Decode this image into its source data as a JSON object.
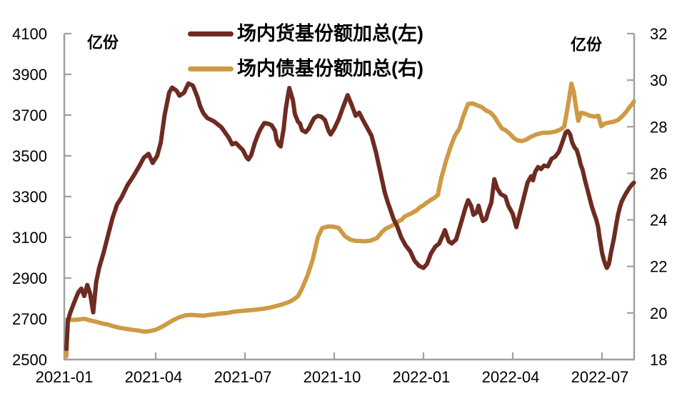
{
  "chart_data": {
    "type": "line",
    "legend_position": "top-center",
    "grid": false,
    "axis_color": "#a0a0a0",
    "text_color": "#000000",
    "left_axis": {
      "unit": "亿份",
      "min": 2500,
      "max": 4100,
      "step": 200,
      "ticks": [
        4100,
        3900,
        3700,
        3500,
        3300,
        3100,
        2900,
        2700,
        2500
      ]
    },
    "right_axis": {
      "unit": "亿份",
      "min": 18,
      "max": 32,
      "step": 2,
      "ticks": [
        32,
        30,
        28,
        26,
        24,
        22,
        20,
        18
      ]
    },
    "x_axis": {
      "tick_labels": [
        "2021-01",
        "2021-04",
        "2021-07",
        "2021-10",
        "2022-01",
        "2022-04",
        "2022-07"
      ],
      "tick_month_offsets": [
        0,
        3,
        6,
        9,
        12,
        15,
        18
      ],
      "months_span": 19.1
    },
    "series": [
      {
        "name": "场内货基份额加总(左)",
        "axis": "left",
        "color": "#6e2b21",
        "points": [
          [
            0.0,
            2552
          ],
          [
            0.05,
            2690
          ],
          [
            0.12,
            2726
          ],
          [
            0.25,
            2776
          ],
          [
            0.4,
            2830
          ],
          [
            0.5,
            2848
          ],
          [
            0.6,
            2812
          ],
          [
            0.7,
            2866
          ],
          [
            0.8,
            2822
          ],
          [
            0.9,
            2732
          ],
          [
            1.0,
            2880
          ],
          [
            1.1,
            2950
          ],
          [
            1.25,
            3025
          ],
          [
            1.4,
            3110
          ],
          [
            1.55,
            3195
          ],
          [
            1.7,
            3260
          ],
          [
            1.85,
            3295
          ],
          [
            2.05,
            3355
          ],
          [
            2.25,
            3400
          ],
          [
            2.45,
            3450
          ],
          [
            2.6,
            3490
          ],
          [
            2.76,
            3510
          ],
          [
            2.9,
            3465
          ],
          [
            3.05,
            3500
          ],
          [
            3.17,
            3565
          ],
          [
            3.3,
            3700
          ],
          [
            3.45,
            3810
          ],
          [
            3.55,
            3835
          ],
          [
            3.7,
            3820
          ],
          [
            3.8,
            3795
          ],
          [
            3.95,
            3810
          ],
          [
            4.1,
            3855
          ],
          [
            4.25,
            3845
          ],
          [
            4.4,
            3790
          ],
          [
            4.49,
            3745
          ],
          [
            4.6,
            3710
          ],
          [
            4.73,
            3686
          ],
          [
            4.97,
            3668
          ],
          [
            5.21,
            3640
          ],
          [
            5.45,
            3590
          ],
          [
            5.57,
            3556
          ],
          [
            5.69,
            3563
          ],
          [
            5.81,
            3546
          ],
          [
            5.93,
            3528
          ],
          [
            6.05,
            3493
          ],
          [
            6.12,
            3482
          ],
          [
            6.21,
            3504
          ],
          [
            6.33,
            3563
          ],
          [
            6.45,
            3609
          ],
          [
            6.53,
            3633
          ],
          [
            6.65,
            3661
          ],
          [
            6.77,
            3658
          ],
          [
            6.89,
            3651
          ],
          [
            7.01,
            3623
          ],
          [
            7.06,
            3581
          ],
          [
            7.13,
            3556
          ],
          [
            7.2,
            3546
          ],
          [
            7.3,
            3633
          ],
          [
            7.37,
            3728
          ],
          [
            7.42,
            3774
          ],
          [
            7.49,
            3833
          ],
          [
            7.61,
            3774
          ],
          [
            7.68,
            3704
          ],
          [
            7.78,
            3668
          ],
          [
            7.85,
            3658
          ],
          [
            7.92,
            3626
          ],
          [
            8.04,
            3616
          ],
          [
            8.14,
            3633
          ],
          [
            8.26,
            3668
          ],
          [
            8.33,
            3686
          ],
          [
            8.45,
            3696
          ],
          [
            8.57,
            3692
          ],
          [
            8.69,
            3675
          ],
          [
            8.81,
            3623
          ],
          [
            8.88,
            3605
          ],
          [
            9.0,
            3633
          ],
          [
            9.15,
            3680
          ],
          [
            9.3,
            3740
          ],
          [
            9.45,
            3798
          ],
          [
            9.6,
            3745
          ],
          [
            9.72,
            3697
          ],
          [
            9.84,
            3712
          ],
          [
            9.95,
            3680
          ],
          [
            10.1,
            3640
          ],
          [
            10.25,
            3600
          ],
          [
            10.4,
            3520
          ],
          [
            10.55,
            3420
          ],
          [
            10.7,
            3320
          ],
          [
            10.8,
            3272
          ],
          [
            10.9,
            3230
          ],
          [
            11.0,
            3188
          ],
          [
            11.1,
            3160
          ],
          [
            11.25,
            3100
          ],
          [
            11.4,
            3060
          ],
          [
            11.55,
            3032
          ],
          [
            11.7,
            2985
          ],
          [
            11.85,
            2960
          ],
          [
            12.0,
            2950
          ],
          [
            12.12,
            2970
          ],
          [
            12.25,
            3020
          ],
          [
            12.4,
            3055
          ],
          [
            12.52,
            3068
          ],
          [
            12.65,
            3110
          ],
          [
            12.72,
            3135
          ],
          [
            12.85,
            3080
          ],
          [
            12.95,
            3070
          ],
          [
            13.1,
            3090
          ],
          [
            13.2,
            3140
          ],
          [
            13.3,
            3190
          ],
          [
            13.42,
            3250
          ],
          [
            13.5,
            3282
          ],
          [
            13.6,
            3255
          ],
          [
            13.68,
            3210
          ],
          [
            13.78,
            3222
          ],
          [
            13.85,
            3255
          ],
          [
            13.92,
            3215
          ],
          [
            14.0,
            3180
          ],
          [
            14.1,
            3190
          ],
          [
            14.18,
            3230
          ],
          [
            14.28,
            3270
          ],
          [
            14.38,
            3385
          ],
          [
            14.48,
            3340
          ],
          [
            14.6,
            3312
          ],
          [
            14.75,
            3300
          ],
          [
            14.85,
            3255
          ],
          [
            15.0,
            3215
          ],
          [
            15.12,
            3150
          ],
          [
            15.25,
            3225
          ],
          [
            15.38,
            3300
          ],
          [
            15.5,
            3370
          ],
          [
            15.62,
            3400
          ],
          [
            15.68,
            3380
          ],
          [
            15.75,
            3420
          ],
          [
            15.85,
            3445
          ],
          [
            15.95,
            3435
          ],
          [
            16.05,
            3452
          ],
          [
            16.18,
            3448
          ],
          [
            16.3,
            3485
          ],
          [
            16.42,
            3495
          ],
          [
            16.55,
            3520
          ],
          [
            16.65,
            3560
          ],
          [
            16.78,
            3615
          ],
          [
            16.85,
            3622
          ],
          [
            16.93,
            3605
          ],
          [
            17.0,
            3565
          ],
          [
            17.08,
            3540
          ],
          [
            17.15,
            3528
          ],
          [
            17.22,
            3495
          ],
          [
            17.28,
            3458
          ],
          [
            17.35,
            3430
          ],
          [
            17.42,
            3385
          ],
          [
            17.5,
            3340
          ],
          [
            17.58,
            3295
          ],
          [
            17.65,
            3255
          ],
          [
            17.73,
            3218
          ],
          [
            17.81,
            3185
          ],
          [
            17.87,
            3150
          ],
          [
            17.91,
            3105
          ],
          [
            17.95,
            3072
          ],
          [
            18.0,
            3025
          ],
          [
            18.06,
            2990
          ],
          [
            18.11,
            2968
          ],
          [
            18.16,
            2950
          ],
          [
            18.23,
            2968
          ],
          [
            18.3,
            3025
          ],
          [
            18.4,
            3095
          ],
          [
            18.48,
            3165
          ],
          [
            18.54,
            3212
          ],
          [
            18.6,
            3248
          ],
          [
            18.66,
            3275
          ],
          [
            18.73,
            3295
          ],
          [
            18.79,
            3312
          ],
          [
            18.85,
            3326
          ],
          [
            18.92,
            3342
          ],
          [
            19.0,
            3358
          ],
          [
            19.07,
            3368
          ]
        ]
      },
      {
        "name": "场内债基份额加总(右)",
        "axis": "right",
        "color": "#ce9a45",
        "points": [
          [
            0.0,
            18.15
          ],
          [
            0.04,
            19.72
          ],
          [
            0.2,
            19.7
          ],
          [
            0.4,
            19.72
          ],
          [
            0.6,
            19.75
          ],
          [
            0.8,
            19.68
          ],
          [
            1.0,
            19.62
          ],
          [
            1.2,
            19.55
          ],
          [
            1.4,
            19.5
          ],
          [
            1.6,
            19.42
          ],
          [
            1.8,
            19.36
          ],
          [
            2.0,
            19.32
          ],
          [
            2.2,
            19.28
          ],
          [
            2.4,
            19.25
          ],
          [
            2.6,
            19.2
          ],
          [
            2.8,
            19.22
          ],
          [
            3.0,
            19.28
          ],
          [
            3.2,
            19.4
          ],
          [
            3.4,
            19.55
          ],
          [
            3.6,
            19.7
          ],
          [
            3.8,
            19.82
          ],
          [
            4.0,
            19.9
          ],
          [
            4.2,
            19.92
          ],
          [
            4.4,
            19.9
          ],
          [
            4.6,
            19.88
          ],
          [
            4.8,
            19.92
          ],
          [
            5.0,
            19.95
          ],
          [
            5.2,
            19.98
          ],
          [
            5.4,
            20.0
          ],
          [
            5.6,
            20.05
          ],
          [
            5.8,
            20.08
          ],
          [
            6.0,
            20.1
          ],
          [
            6.2,
            20.12
          ],
          [
            6.4,
            20.15
          ],
          [
            6.6,
            20.18
          ],
          [
            6.8,
            20.22
          ],
          [
            7.0,
            20.28
          ],
          [
            7.2,
            20.35
          ],
          [
            7.44,
            20.45
          ],
          [
            7.6,
            20.55
          ],
          [
            7.78,
            20.72
          ],
          [
            7.9,
            21.0
          ],
          [
            8.1,
            21.6
          ],
          [
            8.28,
            22.3
          ],
          [
            8.45,
            23.25
          ],
          [
            8.6,
            23.65
          ],
          [
            8.8,
            23.72
          ],
          [
            9.0,
            23.7
          ],
          [
            9.15,
            23.65
          ],
          [
            9.36,
            23.3
          ],
          [
            9.55,
            23.15
          ],
          [
            9.7,
            23.1
          ],
          [
            10.0,
            23.08
          ],
          [
            10.2,
            23.1
          ],
          [
            10.44,
            23.22
          ],
          [
            10.6,
            23.47
          ],
          [
            10.73,
            23.62
          ],
          [
            10.97,
            23.77
          ],
          [
            11.13,
            23.92
          ],
          [
            11.26,
            24.0
          ],
          [
            11.37,
            24.15
          ],
          [
            11.61,
            24.29
          ],
          [
            11.76,
            24.4
          ],
          [
            11.88,
            24.54
          ],
          [
            12.0,
            24.63
          ],
          [
            12.12,
            24.75
          ],
          [
            12.24,
            24.85
          ],
          [
            12.36,
            24.94
          ],
          [
            12.48,
            25.06
          ],
          [
            12.6,
            25.8
          ],
          [
            12.75,
            26.5
          ],
          [
            12.9,
            27.1
          ],
          [
            13.05,
            27.6
          ],
          [
            13.2,
            27.9
          ],
          [
            13.35,
            28.5
          ],
          [
            13.5,
            28.98
          ],
          [
            13.65,
            29.0
          ],
          [
            13.8,
            28.92
          ],
          [
            13.95,
            28.85
          ],
          [
            14.1,
            28.7
          ],
          [
            14.26,
            28.6
          ],
          [
            14.4,
            28.4
          ],
          [
            14.5,
            28.18
          ],
          [
            14.64,
            27.92
          ],
          [
            14.76,
            27.85
          ],
          [
            14.9,
            27.7
          ],
          [
            15.05,
            27.5
          ],
          [
            15.15,
            27.42
          ],
          [
            15.3,
            27.38
          ],
          [
            15.46,
            27.45
          ],
          [
            15.6,
            27.56
          ],
          [
            15.77,
            27.66
          ],
          [
            16.0,
            27.74
          ],
          [
            16.15,
            27.74
          ],
          [
            16.3,
            27.76
          ],
          [
            16.45,
            27.8
          ],
          [
            16.6,
            27.88
          ],
          [
            16.73,
            28.0
          ],
          [
            16.88,
            29.1
          ],
          [
            16.97,
            29.85
          ],
          [
            17.05,
            29.5
          ],
          [
            17.13,
            28.8
          ],
          [
            17.2,
            28.25
          ],
          [
            17.3,
            28.6
          ],
          [
            17.45,
            28.55
          ],
          [
            17.6,
            28.47
          ],
          [
            17.75,
            28.44
          ],
          [
            17.88,
            28.47
          ],
          [
            17.97,
            28.02
          ],
          [
            18.1,
            28.14
          ],
          [
            18.25,
            28.18
          ],
          [
            18.4,
            28.22
          ],
          [
            18.55,
            28.3
          ],
          [
            18.7,
            28.48
          ],
          [
            18.82,
            28.65
          ],
          [
            18.9,
            28.8
          ],
          [
            19.0,
            28.95
          ],
          [
            19.07,
            29.08
          ]
        ]
      }
    ]
  }
}
